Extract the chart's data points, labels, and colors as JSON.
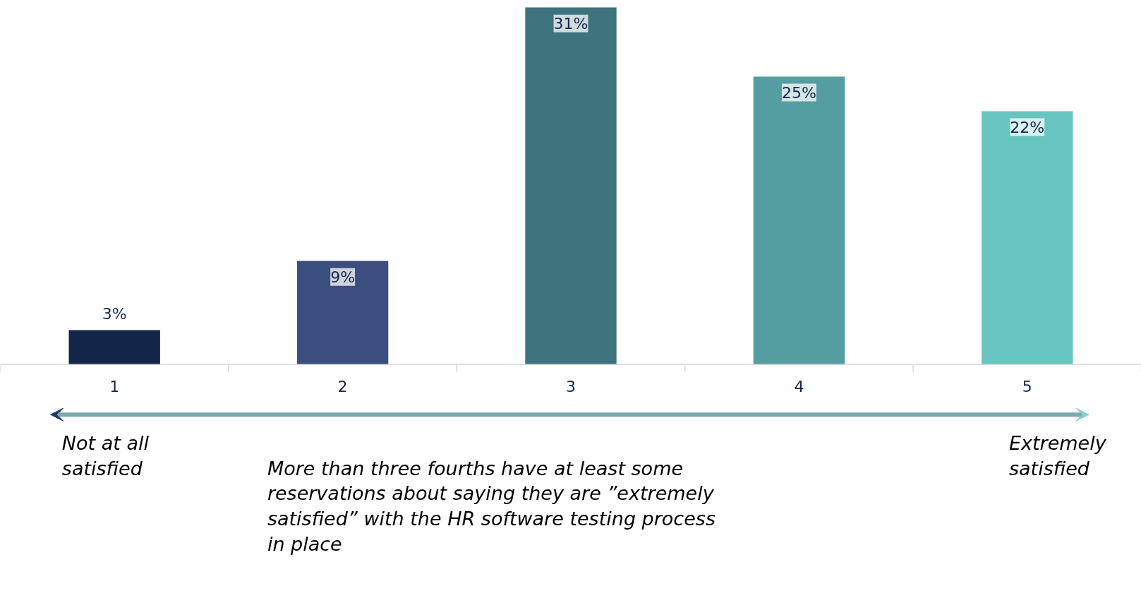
{
  "chart_data": {
    "type": "bar",
    "categories": [
      "1",
      "2",
      "3",
      "4",
      "5"
    ],
    "values": [
      3,
      9,
      31,
      25,
      22
    ],
    "colors": [
      "#13264a",
      "#3b4f7e",
      "#3d737d",
      "#549da0",
      "#67c5bf"
    ],
    "value_labels": [
      "3%",
      "9%",
      "31%",
      "25%",
      "22%"
    ],
    "annotations": [
      "Not at all satisfied",
      "Extremely satisfied",
      "More than three fourths have at least some reservations about saying they are ”extremely satisfied” with the HR software testing process in place"
    ]
  }
}
